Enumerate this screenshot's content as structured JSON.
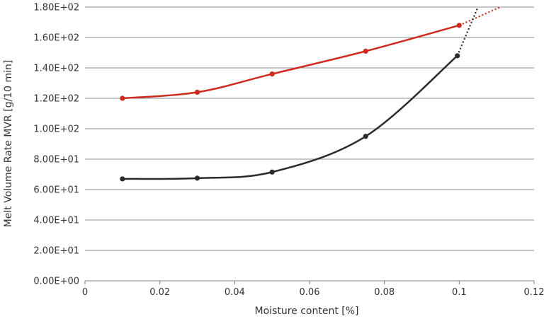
{
  "chart_data": {
    "type": "scatter",
    "title": "",
    "xlabel": "Moisture content [%]",
    "ylabel": "Melt Volume Rate MVR [g/10 min]",
    "xlim": [
      0,
      0.12
    ],
    "ylim": [
      0,
      180
    ],
    "x_ticks": [
      0,
      0.02,
      0.04,
      0.06,
      0.08,
      0.1,
      0.12
    ],
    "x_tick_labels": [
      "0",
      "0.02",
      "0.04",
      "0.06",
      "0.08",
      "0.1",
      "0.12"
    ],
    "y_ticks": [
      0,
      20,
      40,
      60,
      80,
      100,
      120,
      140,
      160,
      180
    ],
    "y_tick_labels": [
      "0.00E+00",
      "2.00E+01",
      "4.00E+01",
      "6.00E+01",
      "8.00E+01",
      "1.00E+02",
      "1.20E+02",
      "1.40E+02",
      "1.60E+02",
      "1.80E+02"
    ],
    "grid": {
      "horizontal": true,
      "vertical": false
    },
    "legend": "none",
    "series": [
      {
        "color": "#cc2b1d",
        "x": [
          0.01,
          0.03,
          0.05,
          0.075,
          0.1
        ],
        "y": [
          120,
          124,
          136,
          151,
          168
        ],
        "trend": "smooth",
        "extrapolation": {
          "x": [
            0.1,
            0.111
          ],
          "y": [
            168,
            180
          ],
          "style": "dotted"
        }
      },
      {
        "color": "#2b2b2b",
        "x": [
          0.01,
          0.03,
          0.05,
          0.075,
          0.0995
        ],
        "y": [
          67,
          67.5,
          71.5,
          95,
          148
        ],
        "trend": "smooth",
        "extrapolation": {
          "x": [
            0.0995,
            0.105
          ],
          "y": [
            148,
            180
          ],
          "style": "dotted"
        }
      }
    ]
  }
}
